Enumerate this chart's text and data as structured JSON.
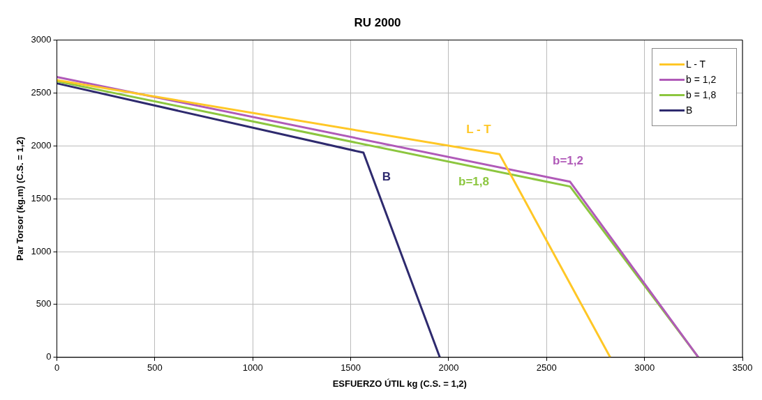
{
  "chart_data": {
    "type": "line",
    "title": "RU 2000",
    "xlabel": "ESFUERZO ÚTIL kg (C.S. = 1,2)",
    "ylabel": "Par Torsor (kg.m) (C.S. = 1,2)",
    "xlim": [
      0,
      3500
    ],
    "xticks": [
      0,
      500,
      1000,
      1500,
      2000,
      2500,
      3000,
      3500
    ],
    "ylim": [
      0,
      3000
    ],
    "yticks": [
      0,
      500,
      1000,
      1500,
      2000,
      2500,
      3000
    ],
    "grid": true,
    "legend": "top right",
    "marker": "none",
    "line_style": "solid",
    "series": [
      {
        "name": "L - T",
        "color": "#ffc726",
        "x": [
          0,
          2260,
          2825
        ],
        "values": [
          2620,
          1920,
          0
        ]
      },
      {
        "name": "b = 1,2",
        "color": "#b05ab8",
        "x": [
          0,
          2620,
          3275
        ],
        "values": [
          2650,
          1660,
          0
        ]
      },
      {
        "name": "b = 1,8",
        "color": "#8cc63f",
        "x": [
          0,
          2620,
          3275
        ],
        "values": [
          2610,
          1615,
          0
        ]
      },
      {
        "name": "B",
        "color": "#2e2a6e",
        "x": [
          0,
          1565,
          1955
        ],
        "values": [
          2590,
          1935,
          0
        ]
      }
    ],
    "annotations": [
      "L - T",
      "b=1,2",
      "b=1,8",
      "B"
    ]
  }
}
